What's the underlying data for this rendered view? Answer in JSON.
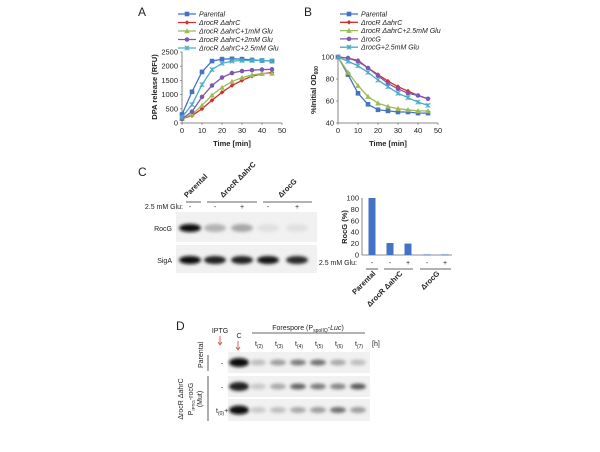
{
  "panels": {
    "a": "A",
    "b": "B",
    "c": "C",
    "d": "D"
  },
  "chart_data": [
    {
      "type": "line",
      "panel": "A",
      "xlabel": "Time [min]",
      "ylabel": "DPA release (RFU)",
      "xlim": [
        0,
        50
      ],
      "ylim": [
        0,
        2500
      ],
      "xticks": [
        0,
        10,
        20,
        30,
        40,
        50
      ],
      "yticks": [
        0,
        500,
        1000,
        1500,
        2000,
        2500
      ],
      "legend": "top",
      "x": [
        0,
        5,
        10,
        15,
        20,
        25,
        30,
        35,
        40,
        45
      ],
      "series": [
        {
          "name": "Parental",
          "color": "#4472c4",
          "marker": "square",
          "values": [
            300,
            1100,
            1800,
            2180,
            2250,
            2260,
            2250,
            2220,
            2200,
            2180
          ]
        },
        {
          "name": "ΔrocR ΔahrC",
          "color": "#d0312d",
          "marker": "diamond",
          "values": [
            150,
            260,
            500,
            800,
            1080,
            1320,
            1500,
            1650,
            1730,
            1780
          ]
        },
        {
          "name": "ΔrocR ΔahrC+1mM Glu",
          "color": "#9bbb59",
          "marker": "triangle",
          "values": [
            150,
            300,
            620,
            980,
            1250,
            1460,
            1600,
            1690,
            1740,
            1750
          ]
        },
        {
          "name": "ΔrocR ΔahrC+2mM Glu",
          "color": "#7e57b2",
          "marker": "circle",
          "values": [
            150,
            400,
            920,
            1320,
            1600,
            1760,
            1830,
            1860,
            1880,
            1890
          ]
        },
        {
          "name": "ΔrocR ΔahrC+2.5mM Glu",
          "color": "#4bacc6",
          "marker": "x",
          "values": [
            200,
            650,
            1350,
            1880,
            2100,
            2180,
            2200,
            2200,
            2200,
            2180
          ]
        }
      ]
    },
    {
      "type": "line",
      "panel": "B",
      "xlabel": "Time [min]",
      "ylabel": "%Initial OD600",
      "xlim": [
        0,
        50
      ],
      "ylim": [
        40,
        100
      ],
      "xticks": [
        0,
        10,
        20,
        30,
        40,
        50
      ],
      "yticks": [
        40,
        60,
        80,
        100
      ],
      "legend": "top",
      "x": [
        0,
        5,
        10,
        15,
        20,
        25,
        30,
        35,
        40,
        45
      ],
      "series": [
        {
          "name": "Parental",
          "color": "#4472c4",
          "marker": "square",
          "values": [
            100,
            84,
            67,
            57,
            52,
            51,
            50,
            50,
            49,
            49
          ]
        },
        {
          "name": "ΔrocR ΔahrC",
          "color": "#d0312d",
          "marker": "diamond",
          "values": [
            100,
            99,
            97,
            90,
            84,
            78,
            73,
            69,
            65,
            62
          ]
        },
        {
          "name": "ΔrocR ΔahrC+2.5mM Glu",
          "color": "#9bbb59",
          "marker": "triangle",
          "values": [
            100,
            86,
            74,
            64,
            58,
            55,
            53,
            52,
            51,
            51
          ]
        },
        {
          "name": "ΔrocG",
          "color": "#7e57b2",
          "marker": "circle",
          "values": [
            100,
            99,
            96,
            90,
            83,
            76,
            71,
            67,
            65,
            62
          ]
        },
        {
          "name": "ΔrocG+2.5mM Glu",
          "color": "#4bacc6",
          "marker": "x",
          "values": [
            100,
            96,
            92,
            86,
            79,
            73,
            67,
            63,
            59,
            56
          ]
        }
      ]
    },
    {
      "type": "bar",
      "panel": "C",
      "ylabel": "RocG (%)",
      "ylim": [
        0,
        100
      ],
      "yticks": [
        0,
        20,
        40,
        60,
        80,
        100
      ],
      "color": "#4472c4",
      "glu_label": "2.5 mM Glu:",
      "glu": [
        "-",
        "-",
        "+",
        "-",
        "+"
      ],
      "values": [
        100,
        21,
        20,
        1,
        1
      ],
      "groups": [
        "Parental",
        "ΔrocR ΔahrC",
        "ΔrocG"
      ]
    }
  ],
  "blot_c": {
    "glu_label": "2.5 mM Glu:",
    "groups": [
      "Parental",
      "ΔrocR ΔahrC",
      "ΔrocG"
    ],
    "glu": [
      "-",
      "-",
      "+",
      "-",
      "+"
    ],
    "rows": [
      {
        "label": "RocG",
        "intensity": [
          1,
          0.25,
          0.3,
          0.05,
          0.05
        ]
      },
      {
        "label": "SigA",
        "intensity": [
          1,
          0.9,
          0.9,
          0.95,
          0.85
        ]
      }
    ]
  },
  "blot_d": {
    "iptg_label": "IPTG",
    "control_label": "C",
    "header": "Forespore (P",
    "header_sub": "spoIIQ",
    "header_end": "-",
    "header_italic": "Luc",
    "header_close": ")",
    "times": [
      "t",
      "t",
      "t",
      "t",
      "t",
      "t"
    ],
    "time_subs": [
      "(2)",
      "(3)",
      "(4)",
      "(5)",
      "(6)",
      "(7)"
    ],
    "unit": "[h]",
    "strain_parental": "Parental",
    "strain_mut_1": "ΔrocR ΔahrC",
    "strain_mut_2": "P",
    "strain_mut_2_sub": "IPTG",
    "strain_mut_2_end": "-rocG",
    "strain_mut_3": "(Mut)",
    "rows": [
      {
        "iptg": "-",
        "intensity": [
          1,
          0.2,
          0.35,
          0.5,
          0.55,
          0.3,
          0.2
        ]
      },
      {
        "iptg": "-",
        "intensity": [
          0.9,
          0.15,
          0.3,
          0.6,
          0.5,
          0.45,
          0.65
        ]
      },
      {
        "iptg": "+",
        "iptg_prefix": "t",
        "iptg_sub": "(0)",
        "intensity": [
          1,
          0.15,
          0.2,
          0.3,
          0.35,
          0.55,
          0.35
        ]
      }
    ],
    "arrow_color": "#d9534f"
  }
}
